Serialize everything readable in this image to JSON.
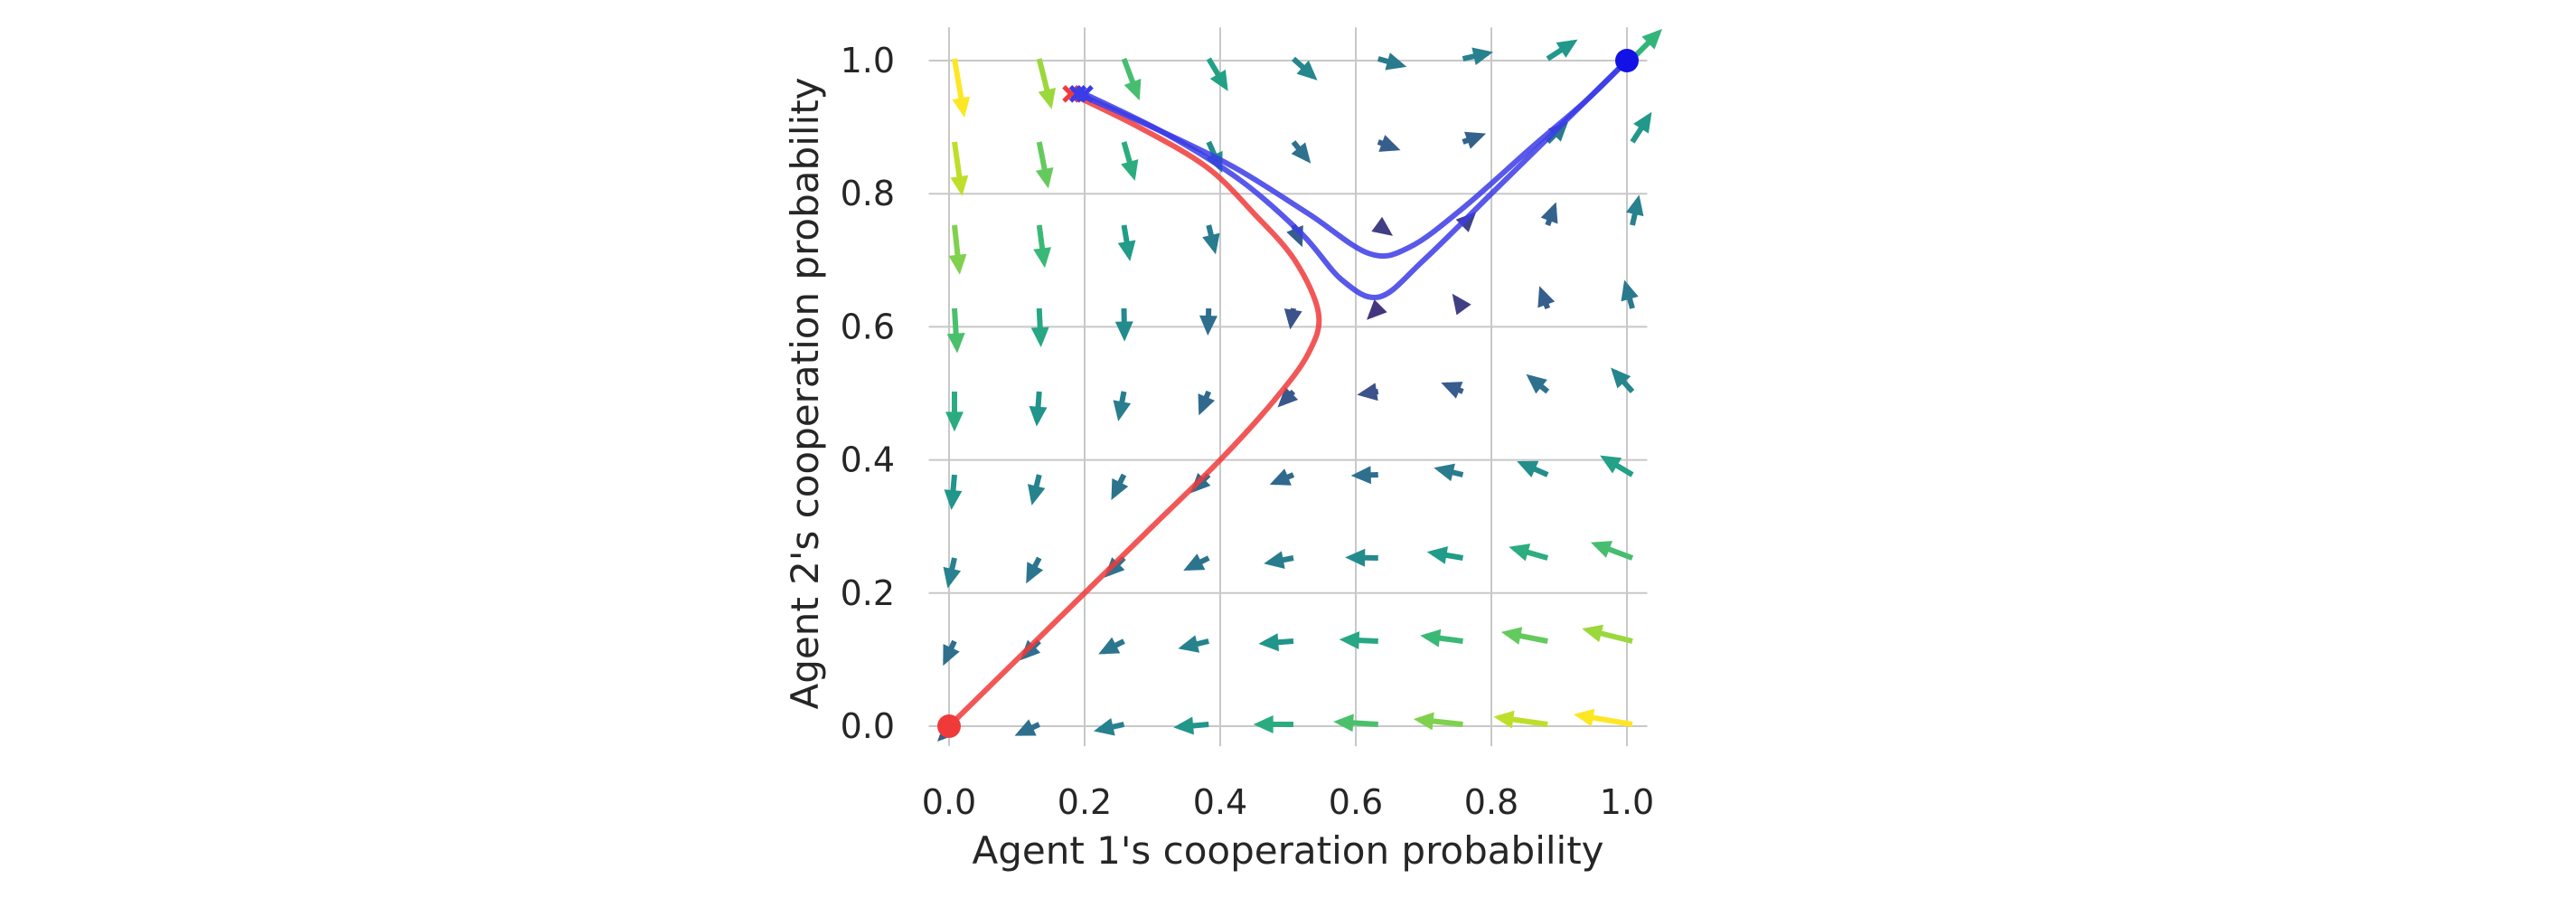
{
  "chart_data": {
    "type": "quiver",
    "xlabel": "Agent 1's cooperation probability",
    "ylabel": "Agent 2's cooperation probability",
    "xlim": [
      -0.03,
      1.03
    ],
    "ylim": [
      -0.03,
      1.05
    ],
    "xticks": [
      "0.0",
      "0.2",
      "0.4",
      "0.6",
      "0.8",
      "1.0"
    ],
    "yticks": [
      "0.0",
      "0.2",
      "0.4",
      "0.6",
      "0.8",
      "1.0"
    ],
    "grid": true,
    "colormap": "viridis",
    "vector_field": {
      "grid": [
        0.0,
        0.125,
        0.25,
        0.375,
        0.5,
        0.625,
        0.75,
        0.875,
        1.0
      ],
      "description_of_dynamics": "payoff-gradient field"
    },
    "series": [
      {
        "color": "#f03a3a",
        "points": [
          [
            0.18,
            0.95
          ],
          [
            0.28,
            0.9
          ],
          [
            0.38,
            0.84
          ],
          [
            0.45,
            0.77
          ],
          [
            0.51,
            0.7
          ],
          [
            0.545,
            0.62
          ],
          [
            0.53,
            0.56
          ],
          [
            0.48,
            0.49
          ],
          [
            0.4,
            0.4
          ],
          [
            0.3,
            0.3
          ],
          [
            0.2,
            0.2
          ],
          [
            0.1,
            0.1
          ],
          [
            0.0,
            0.0
          ]
        ],
        "start_marker": "x",
        "end_marker": "circle"
      },
      {
        "color": "#3b3be8",
        "points": [
          [
            0.19,
            0.95
          ],
          [
            0.3,
            0.9
          ],
          [
            0.42,
            0.84
          ],
          [
            0.53,
            0.77
          ],
          [
            0.62,
            0.71
          ],
          [
            0.68,
            0.72
          ],
          [
            0.76,
            0.78
          ],
          [
            0.86,
            0.87
          ],
          [
            0.94,
            0.94
          ],
          [
            1.0,
            1.0
          ]
        ],
        "start_marker": "x",
        "end_marker": "circle"
      },
      {
        "color": "#3b3be8",
        "points": [
          [
            0.2,
            0.95
          ],
          [
            0.32,
            0.89
          ],
          [
            0.43,
            0.82
          ],
          [
            0.52,
            0.74
          ],
          [
            0.58,
            0.67
          ],
          [
            0.635,
            0.645
          ],
          [
            0.7,
            0.7
          ],
          [
            0.8,
            0.8
          ],
          [
            0.9,
            0.9
          ],
          [
            1.0,
            1.0
          ]
        ],
        "start_marker": "x",
        "end_marker": "circle"
      }
    ],
    "endpoints": [
      {
        "x": 0.0,
        "y": 0.0,
        "color": "#f03a3a"
      },
      {
        "x": 1.0,
        "y": 1.0,
        "color": "#1212e6"
      }
    ]
  }
}
